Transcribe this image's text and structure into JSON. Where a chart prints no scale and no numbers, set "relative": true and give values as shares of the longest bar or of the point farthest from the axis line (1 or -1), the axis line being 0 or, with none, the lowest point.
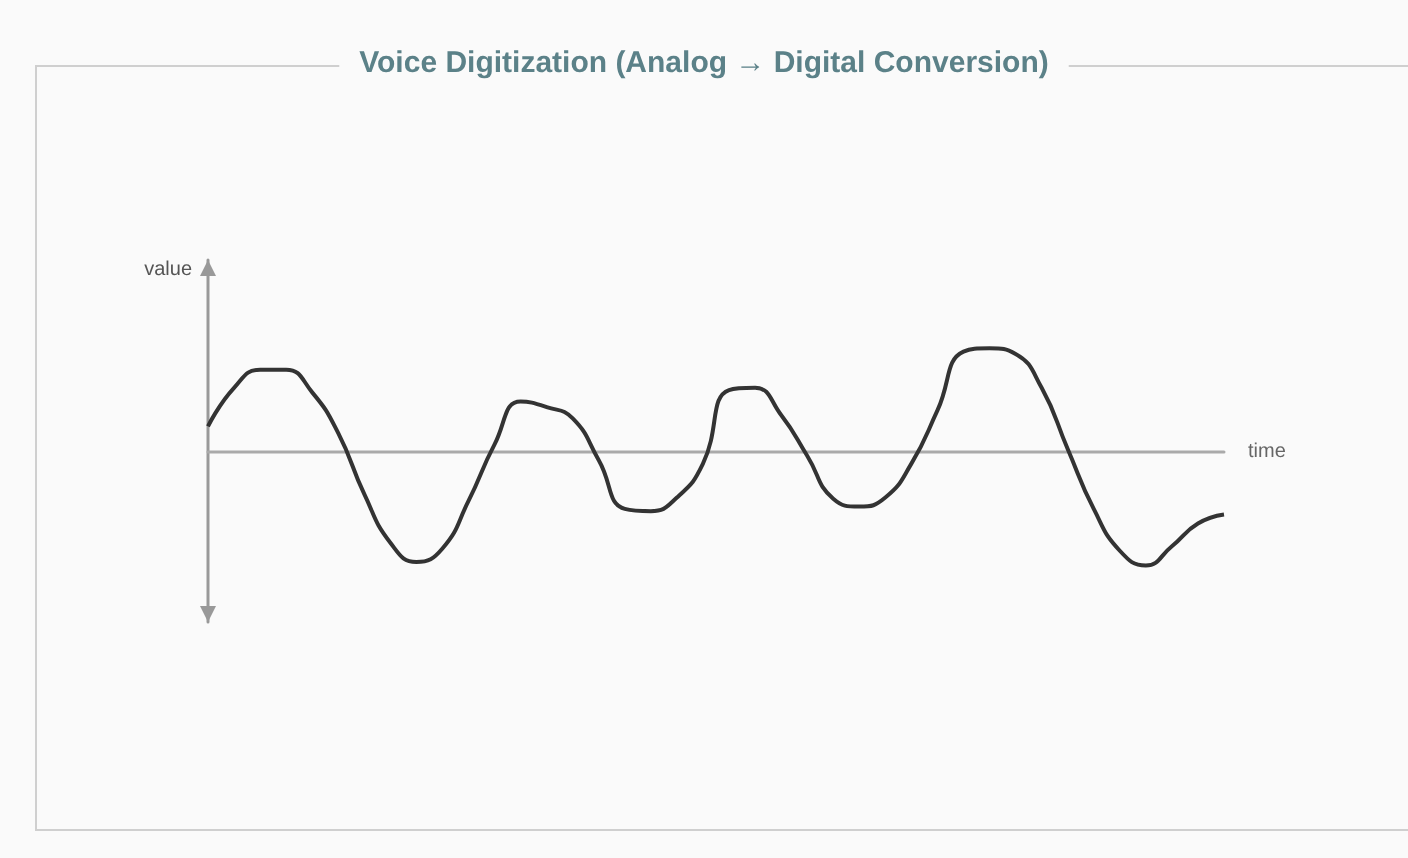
{
  "chart_data": {
    "type": "line",
    "title": "Voice Digitization (Analog → Digital Conversion)",
    "xlabel": "time",
    "ylabel": "value",
    "relative": true,
    "categories": [
      null,
      null,
      null,
      null,
      null,
      null,
      null,
      null,
      null,
      null,
      null,
      null,
      null,
      null,
      null,
      null,
      null,
      null,
      null,
      null,
      null,
      null,
      null,
      null,
      null,
      null,
      null,
      null,
      null,
      null,
      null,
      null,
      null,
      null,
      null,
      null,
      null,
      null,
      null,
      null
    ],
    "series": [
      {
        "color": "#333333",
        "values": [
          0.23,
          0.57,
          0.73,
          0.73,
          0.53,
          0.17,
          -0.37,
          -0.8,
          -0.97,
          -0.85,
          -0.43,
          0.07,
          0.45,
          0.4,
          0.3,
          -0.07,
          -0.5,
          -0.52,
          -0.4,
          -0.1,
          0.55,
          0.57,
          0.33,
          -0.03,
          -0.41,
          -0.48,
          -0.4,
          -0.1,
          0.37,
          0.89,
          0.92,
          0.87,
          0.57,
          0.03,
          -0.5,
          -0.87,
          -1,
          -0.83,
          -0.63,
          -0.55
        ]
      }
    ]
  }
}
